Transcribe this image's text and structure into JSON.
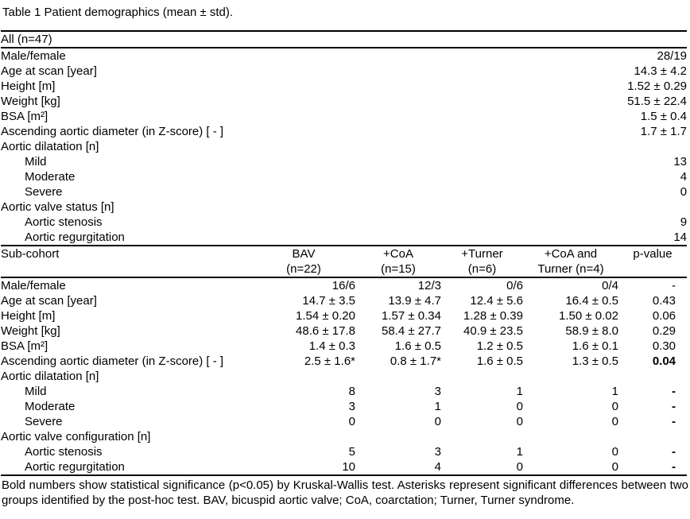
{
  "title": "Table 1 Patient demographics (mean ± std).",
  "all_section": {
    "header": "All (n=47)",
    "rows": [
      {
        "label": "Male/female",
        "indent": false,
        "group": false,
        "value": "28/19"
      },
      {
        "label": "Age at scan [year]",
        "indent": false,
        "group": false,
        "value": "14.3 ± 4.2"
      },
      {
        "label": "Height [m]",
        "indent": false,
        "group": false,
        "value": "1.52 ± 0.29"
      },
      {
        "label": "Weight [kg]",
        "indent": false,
        "group": false,
        "value": "51.5 ± 22.4"
      },
      {
        "label": "BSA [m²]",
        "indent": false,
        "group": false,
        "value": "1.5 ± 0.4"
      },
      {
        "label": "Ascending aortic diameter (in Z-score) [ - ]",
        "indent": false,
        "group": false,
        "value": "1.7 ± 1.7"
      },
      {
        "label": "Aortic dilatation [n]",
        "indent": false,
        "group": true,
        "value": ""
      },
      {
        "label": "Mild",
        "indent": true,
        "group": false,
        "value": "13"
      },
      {
        "label": "Moderate",
        "indent": true,
        "group": false,
        "value": "4"
      },
      {
        "label": "Severe",
        "indent": true,
        "group": false,
        "value": "0"
      },
      {
        "label": "Aortic valve status [n]",
        "indent": false,
        "group": true,
        "value": ""
      },
      {
        "label": "Aortic stenosis",
        "indent": true,
        "group": false,
        "value": "9"
      },
      {
        "label": "Aortic regurgitation",
        "indent": true,
        "group": false,
        "value": "14"
      }
    ]
  },
  "subcohort_section": {
    "label_header": "Sub-cohort",
    "columns": [
      {
        "line1": "BAV",
        "line2": "(n=22)"
      },
      {
        "line1": "+CoA",
        "line2": "(n=15)"
      },
      {
        "line1": "+Turner",
        "line2": "(n=6)"
      },
      {
        "line1": "+CoA and",
        "line2": "Turner (n=4)"
      },
      {
        "line1": "p-value",
        "line2": ""
      }
    ],
    "rows": [
      {
        "label": "Male/female",
        "indent": false,
        "group": false,
        "values": [
          "16/6",
          "12/3",
          "0/6",
          "0/4",
          "-"
        ],
        "p_bold": false
      },
      {
        "label": "Age at scan [year]",
        "indent": false,
        "group": false,
        "values": [
          "14.7 ± 3.5",
          "13.9 ± 4.7",
          "12.4 ± 5.6",
          "16.4 ± 0.5",
          "0.43"
        ],
        "p_bold": false
      },
      {
        "label": "Height [m]",
        "indent": false,
        "group": false,
        "values": [
          "1.54 ± 0.20",
          "1.57 ± 0.34",
          "1.28 ± 0.39",
          "1.50 ± 0.02",
          "0.06"
        ],
        "p_bold": false
      },
      {
        "label": "Weight [kg]",
        "indent": false,
        "group": false,
        "values": [
          "48.6 ± 17.8",
          "58.4 ± 27.7",
          "40.9 ± 23.5",
          "58.9 ± 8.0",
          "0.29"
        ],
        "p_bold": false
      },
      {
        "label": "BSA [m²]",
        "indent": false,
        "group": false,
        "values": [
          "1.4 ± 0.3",
          "1.6 ± 0.5",
          "1.2 ± 0.5",
          "1.6 ± 0.1",
          "0.30"
        ],
        "p_bold": false
      },
      {
        "label": "Ascending aortic diameter (in Z-score) [ - ]",
        "indent": false,
        "group": false,
        "values": [
          "2.5 ± 1.6*",
          "0.8 ± 1.7*",
          "1.6 ± 0.5",
          "1.3 ± 0.5",
          "0.04"
        ],
        "p_bold": true
      },
      {
        "label": "Aortic dilatation [n]",
        "indent": false,
        "group": true,
        "values": [
          "",
          "",
          "",
          "",
          ""
        ],
        "p_bold": false
      },
      {
        "label": "Mild",
        "indent": true,
        "group": false,
        "values": [
          "8",
          "3",
          "1",
          "1",
          "-"
        ],
        "p_bold": true
      },
      {
        "label": "Moderate",
        "indent": true,
        "group": false,
        "values": [
          "3",
          "1",
          "0",
          "0",
          "-"
        ],
        "p_bold": true
      },
      {
        "label": "Severe",
        "indent": true,
        "group": false,
        "values": [
          "0",
          "0",
          "0",
          "0",
          "-"
        ],
        "p_bold": true
      },
      {
        "label": "Aortic valve configuration [n]",
        "indent": false,
        "group": true,
        "values": [
          "",
          "",
          "",
          "",
          ""
        ],
        "p_bold": false
      },
      {
        "label": "Aortic stenosis",
        "indent": true,
        "group": false,
        "values": [
          "5",
          "3",
          "1",
          "0",
          "-"
        ],
        "p_bold": true
      },
      {
        "label": "Aortic regurgitation",
        "indent": true,
        "group": false,
        "values": [
          "10",
          "4",
          "0",
          "0",
          "-"
        ],
        "p_bold": true
      }
    ]
  },
  "footnote": "Bold numbers show statistical significance (p<0.05) by Kruskal-Wallis test. Asterisks represent significant differences between two groups identified by the post-hoc test. BAV, bicuspid aortic valve; CoA, coarctation; Turner, Turner syndrome."
}
